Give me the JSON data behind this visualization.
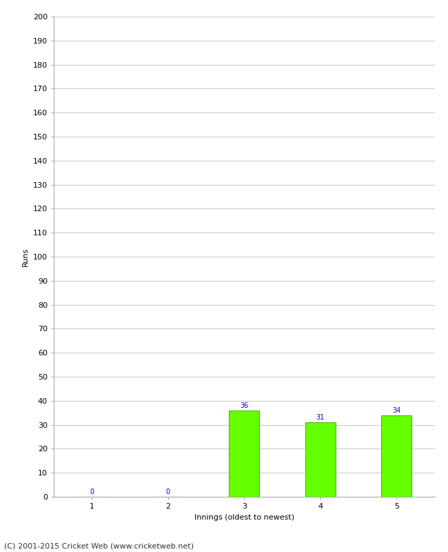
{
  "categories": [
    "1",
    "2",
    "3",
    "4",
    "5"
  ],
  "values": [
    0,
    0,
    36,
    31,
    34
  ],
  "bar_color": "#66ff00",
  "bar_edge_color": "#44bb00",
  "label_color": "#0000cc",
  "xlabel": "Innings (oldest to newest)",
  "ylabel": "Runs",
  "ylim": [
    0,
    200
  ],
  "yticks": [
    0,
    10,
    20,
    30,
    40,
    50,
    60,
    70,
    80,
    90,
    100,
    110,
    120,
    130,
    140,
    150,
    160,
    170,
    180,
    190,
    200
  ],
  "background_color": "#ffffff",
  "grid_color": "#cccccc",
  "footer_text": "(C) 2001-2015 Cricket Web (www.cricketweb.net)",
  "label_fontsize": 7,
  "axis_fontsize": 8,
  "footer_fontsize": 8,
  "bar_width": 0.4
}
